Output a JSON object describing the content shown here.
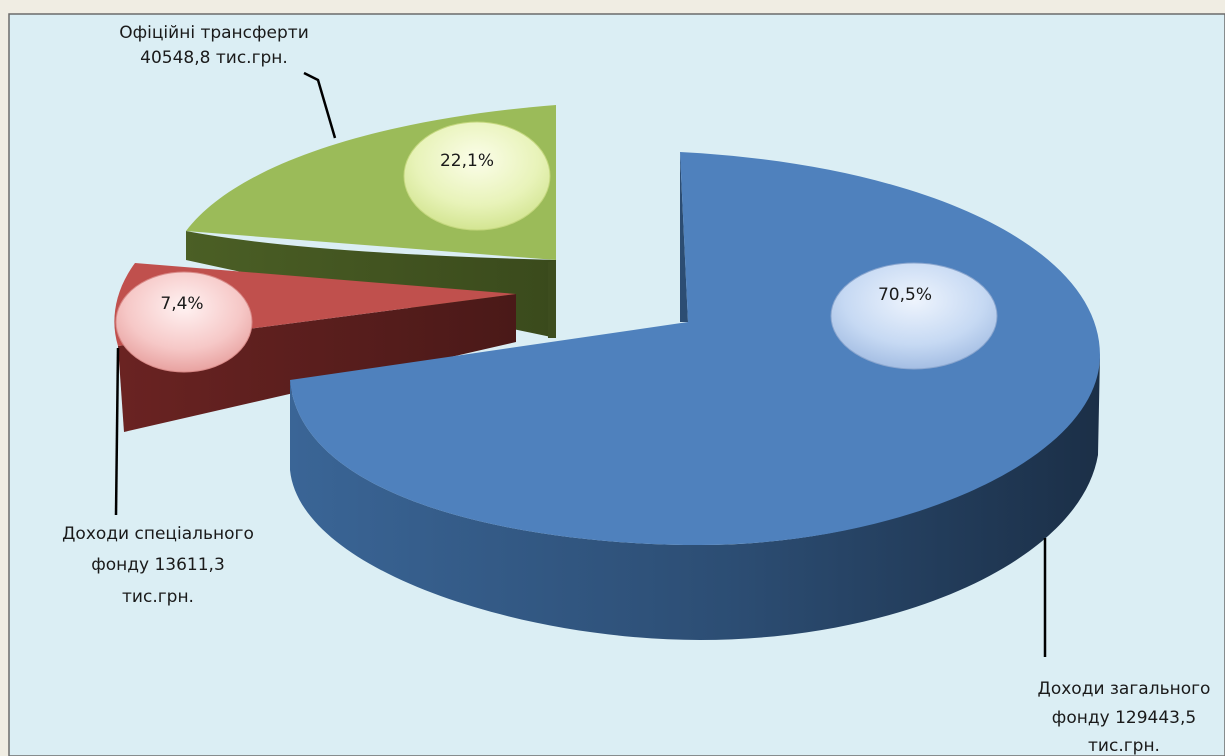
{
  "chart_data": {
    "type": "pie",
    "title": "",
    "labels": [
      "Доходи загального фонду 129443,5 тис.грн.",
      "Доходи спеціального фонду 13611,3 тис.грн.",
      "Офіційні трансферти 40548,8 тис.грн."
    ],
    "values": [
      70.5,
      7.4,
      22.1
    ],
    "amounts": [
      129443.5,
      13611.3,
      40548.8
    ],
    "unit": "тис.грн.",
    "colors": [
      "#4f81bd",
      "#c0504d",
      "#9bbb59"
    ],
    "percent_labels": [
      "70,5%",
      "7,4%",
      "22,1%"
    ],
    "exploded": true,
    "three_d": true
  },
  "labels": {
    "general": [
      "Доходи загального",
      "фонду  129443,5",
      "тис.грн."
    ],
    "special": [
      "Доходи спеціального",
      "фонду 13611,3",
      "тис.грн."
    ],
    "transfers": [
      "Офіційні трансферти",
      "40548,8 тис.грн."
    ]
  },
  "colors": {
    "plot_bg": "#dbeef4",
    "page_bg": "#f0ede3",
    "border": "#6b6b6b"
  }
}
